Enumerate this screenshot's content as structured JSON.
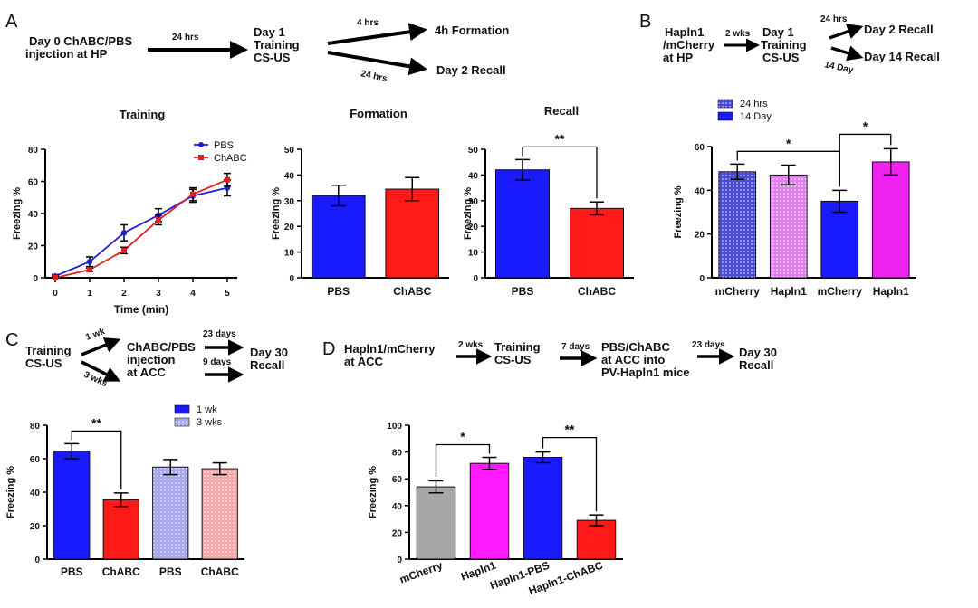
{
  "panels": {
    "A": {
      "letter": "A",
      "flow": {
        "start": [
          "Day 0 ChABC/PBS",
          "injection at HP"
        ],
        "arrow1": "24 hrs",
        "day1": [
          "Day 1",
          "Training",
          "CS-US"
        ],
        "arrow_up": "4 hrs",
        "end_up": "4h Formation",
        "arrow_down": "24 hrs",
        "end_down": "Day 2 Recall"
      }
    },
    "B": {
      "letter": "B",
      "flow": {
        "start": [
          "Hapln1",
          "/mCherry",
          "at HP"
        ],
        "arrow1": "2 wks",
        "day1": [
          "Day 1",
          "Training",
          "CS-US"
        ],
        "arrow_up": "24 hrs",
        "end_up": "Day 2 Recall",
        "arrow_down": "14 Day",
        "end_down": "Day 14 Recall"
      }
    },
    "C": {
      "letter": "C",
      "flow": {
        "start": [
          "Training",
          "CS-US"
        ],
        "arrow_up": "1 wk",
        "arrow_down": "3 wks",
        "mid": [
          "ChABC/PBS",
          "injection",
          "at ACC"
        ],
        "arrow_a": "23 days",
        "arrow_b": "9 days",
        "end": [
          "Day 30",
          "Recall"
        ]
      }
    },
    "D": {
      "letter": "D",
      "flow": {
        "start": [
          "Hapln1/mCherry",
          "at ACC"
        ],
        "arrow1": "2 wks",
        "step2": [
          "Training",
          "CS-US"
        ],
        "arrow2": "7 days",
        "step3": [
          "PBS/ChABC",
          "at ACC into",
          "PV-Hapln1 mice"
        ],
        "arrow3": "23 days",
        "end": [
          "Day 30",
          "Recall"
        ]
      }
    }
  },
  "chart_data": [
    {
      "id": "training",
      "type": "line",
      "title": "Training",
      "xlabel": "Time (min)",
      "ylabel": "Freezing %",
      "x": [
        0,
        1,
        2,
        3,
        4,
        5
      ],
      "xticks": [
        "0",
        "1",
        "2",
        "3",
        "4",
        "5"
      ],
      "ylim": [
        0,
        80
      ],
      "yticks": [
        "0",
        "20",
        "40",
        "60",
        "80"
      ],
      "series": [
        {
          "name": "PBS",
          "color": "#1f1fd6",
          "values": [
            1,
            10,
            28,
            39,
            51,
            56
          ],
          "errors": [
            1,
            3,
            5,
            4,
            4,
            5
          ]
        },
        {
          "name": "ChABC",
          "color": "#e02020",
          "values": [
            0,
            5,
            17,
            36,
            52,
            61
          ],
          "errors": [
            1,
            1,
            2,
            3,
            4,
            4
          ]
        }
      ]
    },
    {
      "id": "formation",
      "type": "bar",
      "title": "Formation",
      "ylabel": "Freezing %",
      "categories": [
        "PBS",
        "ChABC"
      ],
      "values": [
        32,
        34.5
      ],
      "errors": [
        4,
        4.5
      ],
      "colors": [
        "#1a1aff",
        "#ff1a1a"
      ],
      "ylim": [
        0,
        50
      ],
      "yticks": [
        "0",
        "10",
        "20",
        "30",
        "40",
        "50"
      ]
    },
    {
      "id": "recall",
      "type": "bar",
      "title": "Recall",
      "ylabel": "Freezing %",
      "categories": [
        "PBS",
        "ChABC"
      ],
      "values": [
        42,
        27
      ],
      "errors": [
        4,
        2.5
      ],
      "colors": [
        "#1a1aff",
        "#ff1a1a"
      ],
      "ylim": [
        0,
        50
      ],
      "yticks": [
        "0",
        "10",
        "20",
        "30",
        "40",
        "50"
      ],
      "significance": [
        {
          "pair": [
            0,
            1
          ],
          "label": "**"
        }
      ]
    },
    {
      "id": "panel-b",
      "type": "bar",
      "title": "",
      "ylabel": "Freezing %",
      "categories": [
        "mCherry",
        "Hapln1",
        "mCherry",
        "Hapln1"
      ],
      "values": [
        48.5,
        47,
        35,
        53
      ],
      "errors": [
        3.5,
        4.5,
        5,
        6
      ],
      "colors": [
        "#3b3bd6",
        "#e080ee",
        "#1a1aff",
        "#ee22ee"
      ],
      "patterned": [
        true,
        true,
        false,
        false
      ],
      "ylim": [
        0,
        60
      ],
      "yticks": [
        "0",
        "20",
        "40",
        "60"
      ],
      "legend": [
        {
          "label": "24 hrs",
          "color": "#4a4ad8",
          "patterned": true
        },
        {
          "label": "14 Day",
          "color": "#1a1aff",
          "patterned": false
        }
      ],
      "significance": [
        {
          "pair": [
            0,
            2
          ],
          "label": "*"
        },
        {
          "pair": [
            2,
            3
          ],
          "label": "*"
        }
      ]
    },
    {
      "id": "panel-c",
      "type": "bar",
      "title": "",
      "ylabel": "Freezing %",
      "categories": [
        "PBS",
        "ChABC",
        "PBS",
        "ChABC"
      ],
      "values": [
        64.5,
        35.5,
        55,
        54
      ],
      "errors": [
        4.5,
        4,
        4.5,
        3.5
      ],
      "colors": [
        "#1a1aff",
        "#ff1a1a",
        "#a8a8f0",
        "#f4a8a8"
      ],
      "patterned": [
        false,
        false,
        true,
        true
      ],
      "ylim": [
        0,
        80
      ],
      "yticks": [
        "0",
        "20",
        "40",
        "60",
        "80"
      ],
      "legend": [
        {
          "label": "1 wk",
          "color": "#1a1aff",
          "patterned": false
        },
        {
          "label": "3 wks",
          "color": "#8c8ce8",
          "patterned": true
        }
      ],
      "significance": [
        {
          "pair": [
            0,
            1
          ],
          "label": "**"
        }
      ]
    },
    {
      "id": "panel-d",
      "type": "bar",
      "title": "",
      "ylabel": "Freezing %",
      "categories": [
        "mCherry",
        "Hapln1",
        "Hapln1-PBS",
        "Hapln1-ChABC"
      ],
      "values": [
        54,
        71.5,
        76,
        29
      ],
      "errors": [
        4.5,
        4.5,
        4,
        4
      ],
      "colors": [
        "#a6a6a6",
        "#ff1aff",
        "#1a1aff",
        "#ff1a1a"
      ],
      "ylim": [
        0,
        100
      ],
      "yticks": [
        "0",
        "20",
        "40",
        "60",
        "80",
        "100"
      ],
      "significance": [
        {
          "pair": [
            0,
            1
          ],
          "label": "*"
        },
        {
          "pair": [
            2,
            3
          ],
          "label": "**"
        }
      ]
    }
  ]
}
